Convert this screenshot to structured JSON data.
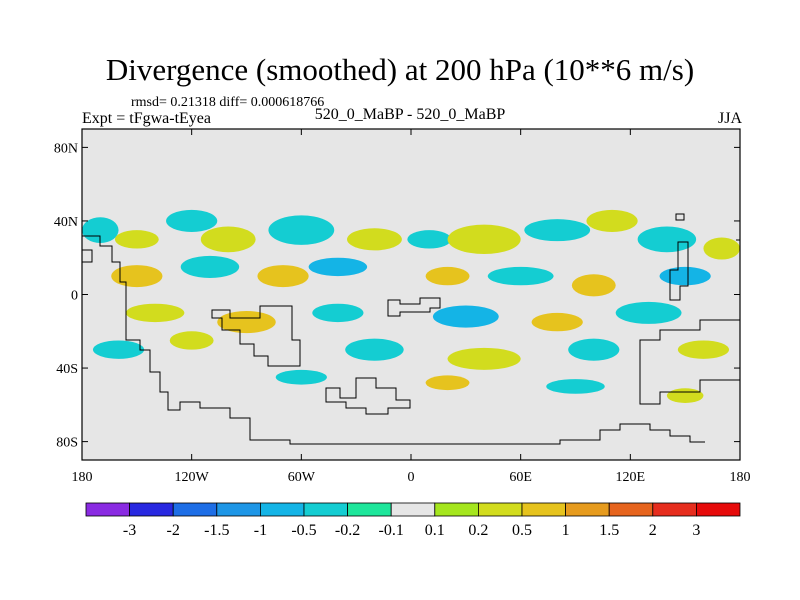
{
  "title": "Divergence (smoothed) at 200 hPa (10**6 m/s)",
  "stats": "rmsd= 0.21318 diff= 0.000618766",
  "experiment": "Expt = tFgwa-tEyea",
  "case": "520_0_MaBP - 520_0_MaBP",
  "season": "JJA",
  "chart_data": {
    "type": "heatmap",
    "projection": "cylindrical equidistant",
    "lon_range": [
      -180,
      180
    ],
    "lat_range": [
      -90,
      90
    ],
    "y_ticks": [
      {
        "label": "80N",
        "lat": 80
      },
      {
        "label": "40N",
        "lat": 40
      },
      {
        "label": "0",
        "lat": 0
      },
      {
        "label": "40S",
        "lat": -40
      },
      {
        "label": "80S",
        "lat": -80
      }
    ],
    "x_ticks": [
      {
        "label": "180",
        "lon": -180
      },
      {
        "label": "120W",
        "lon": -120
      },
      {
        "label": "60W",
        "lon": -60
      },
      {
        "label": "0",
        "lon": 0
      },
      {
        "label": "60E",
        "lon": 60
      },
      {
        "label": "120E",
        "lon": 120
      },
      {
        "label": "180",
        "lon": 180
      }
    ],
    "colorbar": {
      "boundaries": [
        "-3",
        "-2",
        "-1.5",
        "-1",
        "-0.5",
        "-0.2",
        "-0.1",
        "0.1",
        "0.2",
        "0.5",
        "1",
        "1.5",
        "2",
        "3"
      ],
      "colors": [
        "#8a2be2",
        "#2828e0",
        "#1e6ee6",
        "#1e96e6",
        "#14b4e6",
        "#14cdd2",
        "#1ee69b",
        "#e6e6e6",
        "#a5e61e",
        "#d2dc1e",
        "#e6c31e",
        "#e69b1e",
        "#e6641e",
        "#e62d1e",
        "#e60a0a"
      ]
    },
    "blobs": [
      {
        "lon": -170,
        "lat": 35,
        "rx": 10,
        "ry": 7,
        "c": 5
      },
      {
        "lon": -150,
        "lat": 30,
        "rx": 12,
        "ry": 5,
        "c": 9
      },
      {
        "lon": -120,
        "lat": 40,
        "rx": 14,
        "ry": 6,
        "c": 5
      },
      {
        "lon": -100,
        "lat": 30,
        "rx": 15,
        "ry": 7,
        "c": 9
      },
      {
        "lon": -60,
        "lat": 35,
        "rx": 18,
        "ry": 8,
        "c": 5
      },
      {
        "lon": -20,
        "lat": 30,
        "rx": 15,
        "ry": 6,
        "c": 9
      },
      {
        "lon": 10,
        "lat": 30,
        "rx": 12,
        "ry": 5,
        "c": 5
      },
      {
        "lon": 40,
        "lat": 30,
        "rx": 20,
        "ry": 8,
        "c": 9
      },
      {
        "lon": 80,
        "lat": 35,
        "rx": 18,
        "ry": 6,
        "c": 5
      },
      {
        "lon": 110,
        "lat": 40,
        "rx": 14,
        "ry": 6,
        "c": 9
      },
      {
        "lon": 140,
        "lat": 30,
        "rx": 16,
        "ry": 7,
        "c": 5
      },
      {
        "lon": 170,
        "lat": 25,
        "rx": 10,
        "ry": 6,
        "c": 9
      },
      {
        "lon": -150,
        "lat": 10,
        "rx": 14,
        "ry": 6,
        "c": 10
      },
      {
        "lon": -110,
        "lat": 15,
        "rx": 16,
        "ry": 6,
        "c": 5
      },
      {
        "lon": -70,
        "lat": 10,
        "rx": 14,
        "ry": 6,
        "c": 10
      },
      {
        "lon": -40,
        "lat": 15,
        "rx": 16,
        "ry": 5,
        "c": 4
      },
      {
        "lon": 20,
        "lat": 10,
        "rx": 12,
        "ry": 5,
        "c": 10
      },
      {
        "lon": 60,
        "lat": 10,
        "rx": 18,
        "ry": 5,
        "c": 5
      },
      {
        "lon": 100,
        "lat": 5,
        "rx": 12,
        "ry": 6,
        "c": 10
      },
      {
        "lon": 150,
        "lat": 10,
        "rx": 14,
        "ry": 5,
        "c": 4
      },
      {
        "lon": -140,
        "lat": -10,
        "rx": 16,
        "ry": 5,
        "c": 9
      },
      {
        "lon": -90,
        "lat": -15,
        "rx": 16,
        "ry": 6,
        "c": 10
      },
      {
        "lon": -40,
        "lat": -10,
        "rx": 14,
        "ry": 5,
        "c": 5
      },
      {
        "lon": 30,
        "lat": -12,
        "rx": 18,
        "ry": 6,
        "c": 4
      },
      {
        "lon": 80,
        "lat": -15,
        "rx": 14,
        "ry": 5,
        "c": 10
      },
      {
        "lon": 130,
        "lat": -10,
        "rx": 18,
        "ry": 6,
        "c": 5
      },
      {
        "lon": -160,
        "lat": -30,
        "rx": 14,
        "ry": 5,
        "c": 5
      },
      {
        "lon": -120,
        "lat": -25,
        "rx": 12,
        "ry": 5,
        "c": 9
      },
      {
        "lon": -20,
        "lat": -30,
        "rx": 16,
        "ry": 6,
        "c": 5
      },
      {
        "lon": 40,
        "lat": -35,
        "rx": 20,
        "ry": 6,
        "c": 9
      },
      {
        "lon": 100,
        "lat": -30,
        "rx": 14,
        "ry": 6,
        "c": 5
      },
      {
        "lon": 160,
        "lat": -30,
        "rx": 14,
        "ry": 5,
        "c": 9
      },
      {
        "lon": -60,
        "lat": -45,
        "rx": 14,
        "ry": 4,
        "c": 5
      },
      {
        "lon": 20,
        "lat": -48,
        "rx": 12,
        "ry": 4,
        "c": 10
      },
      {
        "lon": 90,
        "lat": -50,
        "rx": 16,
        "ry": 4,
        "c": 5
      },
      {
        "lon": 150,
        "lat": -55,
        "rx": 10,
        "ry": 4,
        "c": 9
      }
    ]
  }
}
